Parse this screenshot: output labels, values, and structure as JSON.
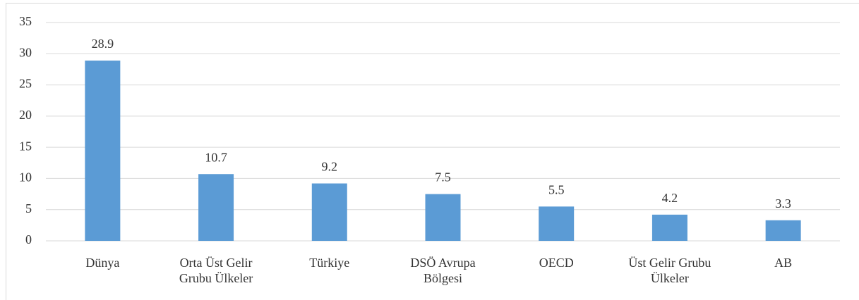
{
  "chart_data": {
    "type": "bar",
    "categories": [
      "Dünya",
      "Orta Üst Gelir Grubu Ülkeler",
      "Türkiye",
      "DSÖ Avrupa Bölgesi",
      "OECD",
      "Üst Gelir Grubu Ülkeler",
      "AB"
    ],
    "values": [
      28.9,
      10.7,
      9.2,
      7.5,
      5.5,
      4.2,
      3.3
    ],
    "color": "#5b9bd5",
    "ylim": [
      0,
      35
    ],
    "yticks": [
      0,
      5,
      10,
      15,
      20,
      25,
      30,
      35
    ],
    "grid": true
  }
}
